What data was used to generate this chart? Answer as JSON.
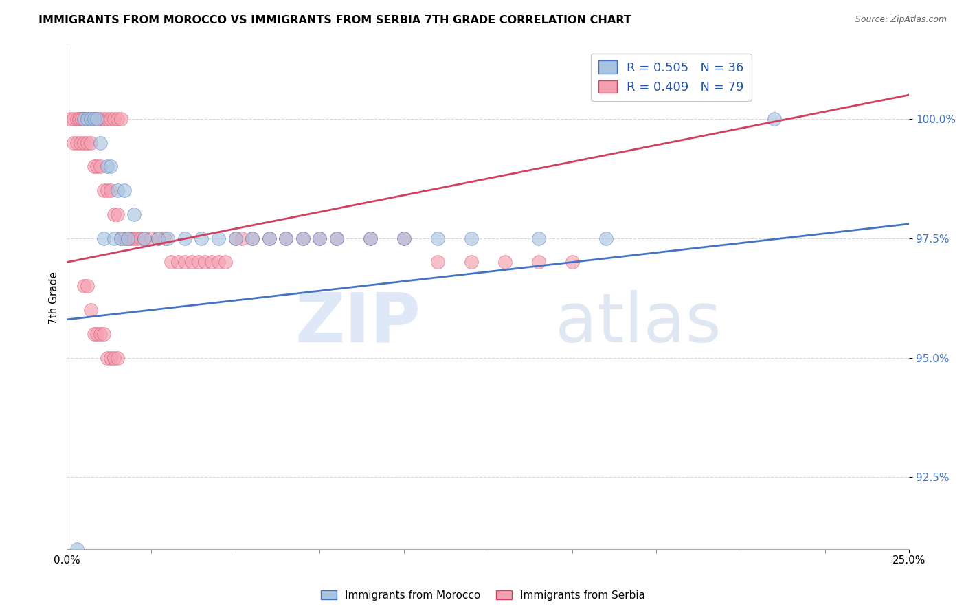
{
  "title": "IMMIGRANTS FROM MOROCCO VS IMMIGRANTS FROM SERBIA 7TH GRADE CORRELATION CHART",
  "source": "Source: ZipAtlas.com",
  "ylabel": "7th Grade",
  "y_ticks": [
    92.5,
    95.0,
    97.5,
    100.0
  ],
  "y_tick_labels": [
    "92.5%",
    "95.0%",
    "97.5%",
    "100.0%"
  ],
  "xlim": [
    0.0,
    25.0
  ],
  "ylim": [
    91.0,
    101.5
  ],
  "morocco_color": "#a8c4e0",
  "serbia_color": "#f4a0b0",
  "morocco_line_color": "#4472c4",
  "serbia_line_color": "#d04060",
  "legend_morocco_label": "R = 0.505   N = 36",
  "legend_serbia_label": "R = 0.409   N = 79",
  "morocco_x": [
    0.3,
    0.5,
    0.6,
    0.7,
    0.8,
    0.9,
    1.0,
    1.2,
    1.3,
    1.5,
    1.7,
    2.0,
    2.3,
    2.7,
    3.0,
    3.5,
    4.0,
    4.5,
    5.0,
    5.5,
    6.0,
    6.5,
    7.0,
    7.5,
    8.0,
    9.0,
    10.0,
    11.0,
    12.0,
    14.0,
    16.0,
    21.0,
    1.1,
    1.4,
    1.6,
    1.8
  ],
  "morocco_y": [
    91.0,
    100.0,
    100.0,
    100.0,
    100.0,
    100.0,
    99.5,
    99.0,
    99.0,
    98.5,
    98.5,
    98.0,
    97.5,
    97.5,
    97.5,
    97.5,
    97.5,
    97.5,
    97.5,
    97.5,
    97.5,
    97.5,
    97.5,
    97.5,
    97.5,
    97.5,
    97.5,
    97.5,
    97.5,
    97.5,
    97.5,
    100.0,
    97.5,
    97.5,
    97.5,
    97.5
  ],
  "serbia_x": [
    0.1,
    0.2,
    0.3,
    0.4,
    0.5,
    0.5,
    0.6,
    0.7,
    0.8,
    0.9,
    1.0,
    1.1,
    1.2,
    1.3,
    1.4,
    1.5,
    1.6,
    0.2,
    0.3,
    0.4,
    0.5,
    0.6,
    0.7,
    0.8,
    0.9,
    1.0,
    1.1,
    1.2,
    1.3,
    1.4,
    1.5,
    1.6,
    1.7,
    1.8,
    1.9,
    2.0,
    2.1,
    2.2,
    2.3,
    2.5,
    2.7,
    2.9,
    3.1,
    3.3,
    3.5,
    3.7,
    3.9,
    4.1,
    4.3,
    4.5,
    4.7,
    5.0,
    5.5,
    6.0,
    6.5,
    7.0,
    7.5,
    8.0,
    9.0,
    10.0,
    11.0,
    12.0,
    13.0,
    14.0,
    15.0,
    5.2,
    0.5,
    0.6,
    0.7,
    0.8,
    0.9,
    1.0,
    1.1,
    1.2,
    1.3,
    1.4,
    1.5,
    0.35,
    0.45
  ],
  "serbia_y": [
    100.0,
    100.0,
    100.0,
    100.0,
    100.0,
    100.0,
    100.0,
    100.0,
    100.0,
    100.0,
    100.0,
    100.0,
    100.0,
    100.0,
    100.0,
    100.0,
    100.0,
    99.5,
    99.5,
    99.5,
    99.5,
    99.5,
    99.5,
    99.0,
    99.0,
    99.0,
    98.5,
    98.5,
    98.5,
    98.0,
    98.0,
    97.5,
    97.5,
    97.5,
    97.5,
    97.5,
    97.5,
    97.5,
    97.5,
    97.5,
    97.5,
    97.5,
    97.0,
    97.0,
    97.0,
    97.0,
    97.0,
    97.0,
    97.0,
    97.0,
    97.0,
    97.5,
    97.5,
    97.5,
    97.5,
    97.5,
    97.5,
    97.5,
    97.5,
    97.5,
    97.0,
    97.0,
    97.0,
    97.0,
    97.0,
    97.5,
    96.5,
    96.5,
    96.0,
    95.5,
    95.5,
    95.5,
    95.5,
    95.0,
    95.0,
    95.0,
    95.0,
    100.0,
    100.0
  ]
}
